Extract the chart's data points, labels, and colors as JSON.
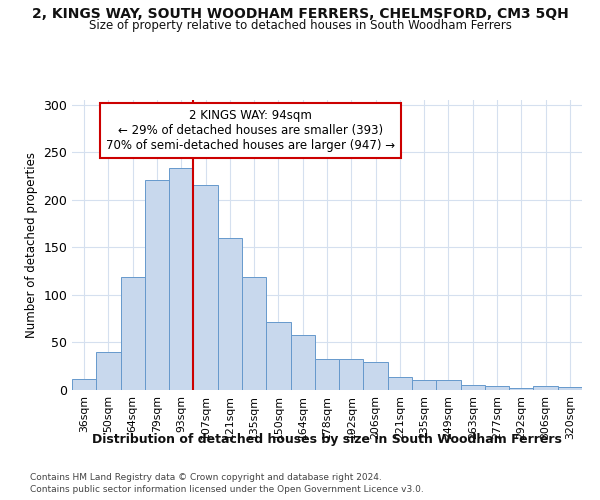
{
  "title_line1": "2, KINGS WAY, SOUTH WOODHAM FERRERS, CHELMSFORD, CM3 5QH",
  "title_line2": "Size of property relative to detached houses in South Woodham Ferrers",
  "xlabel": "Distribution of detached houses by size in South Woodham Ferrers",
  "ylabel": "Number of detached properties",
  "footnote1": "Contains HM Land Registry data © Crown copyright and database right 2024.",
  "footnote2": "Contains public sector information licensed under the Open Government Licence v3.0.",
  "annotation_title": "2 KINGS WAY: 94sqm",
  "annotation_line2": "← 29% of detached houses are smaller (393)",
  "annotation_line3": "70% of semi-detached houses are larger (947) →",
  "bar_labels": [
    "36sqm",
    "50sqm",
    "64sqm",
    "79sqm",
    "93sqm",
    "107sqm",
    "121sqm",
    "135sqm",
    "150sqm",
    "164sqm",
    "178sqm",
    "192sqm",
    "206sqm",
    "221sqm",
    "235sqm",
    "249sqm",
    "263sqm",
    "277sqm",
    "292sqm",
    "306sqm",
    "320sqm"
  ],
  "bar_heights": [
    12,
    40,
    119,
    221,
    233,
    216,
    160,
    119,
    71,
    58,
    33,
    33,
    29,
    14,
    11,
    10,
    5,
    4,
    2,
    4,
    3
  ],
  "bar_color": "#c8d8ed",
  "bar_edge_color": "#6699cc",
  "vline_x": 4.5,
  "vline_color": "#cc0000",
  "ylim": [
    0,
    305
  ],
  "yticks": [
    0,
    50,
    100,
    150,
    200,
    250,
    300
  ],
  "background_color": "#ffffff",
  "annotation_box_color": "white",
  "annotation_box_edge": "#cc0000",
  "grid_color": "#d5e0ef"
}
